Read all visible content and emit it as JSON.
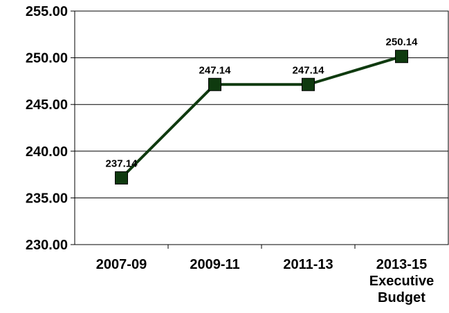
{
  "chart_data": {
    "type": "line",
    "title": "",
    "xlabel": "",
    "ylabel": "",
    "categories": [
      [
        "2007-09"
      ],
      [
        "2009-11"
      ],
      [
        "2011-13"
      ],
      [
        "2013-15",
        "Executive",
        "Budget"
      ]
    ],
    "series": [
      {
        "values": [
          237.14,
          247.14,
          247.14,
          250.14
        ],
        "labels": [
          "237.14",
          "247.14",
          "247.14",
          "250.14"
        ],
        "color": "#0f3a0f",
        "marker": "square"
      }
    ],
    "ylim": [
      230,
      255
    ],
    "yticks": [
      230,
      235,
      240,
      245,
      250,
      255
    ],
    "ytick_labels": [
      "230.00",
      "235.00",
      "240.00",
      "245.00",
      "250.00",
      "255.00"
    ],
    "grid": true,
    "legend": "none"
  }
}
